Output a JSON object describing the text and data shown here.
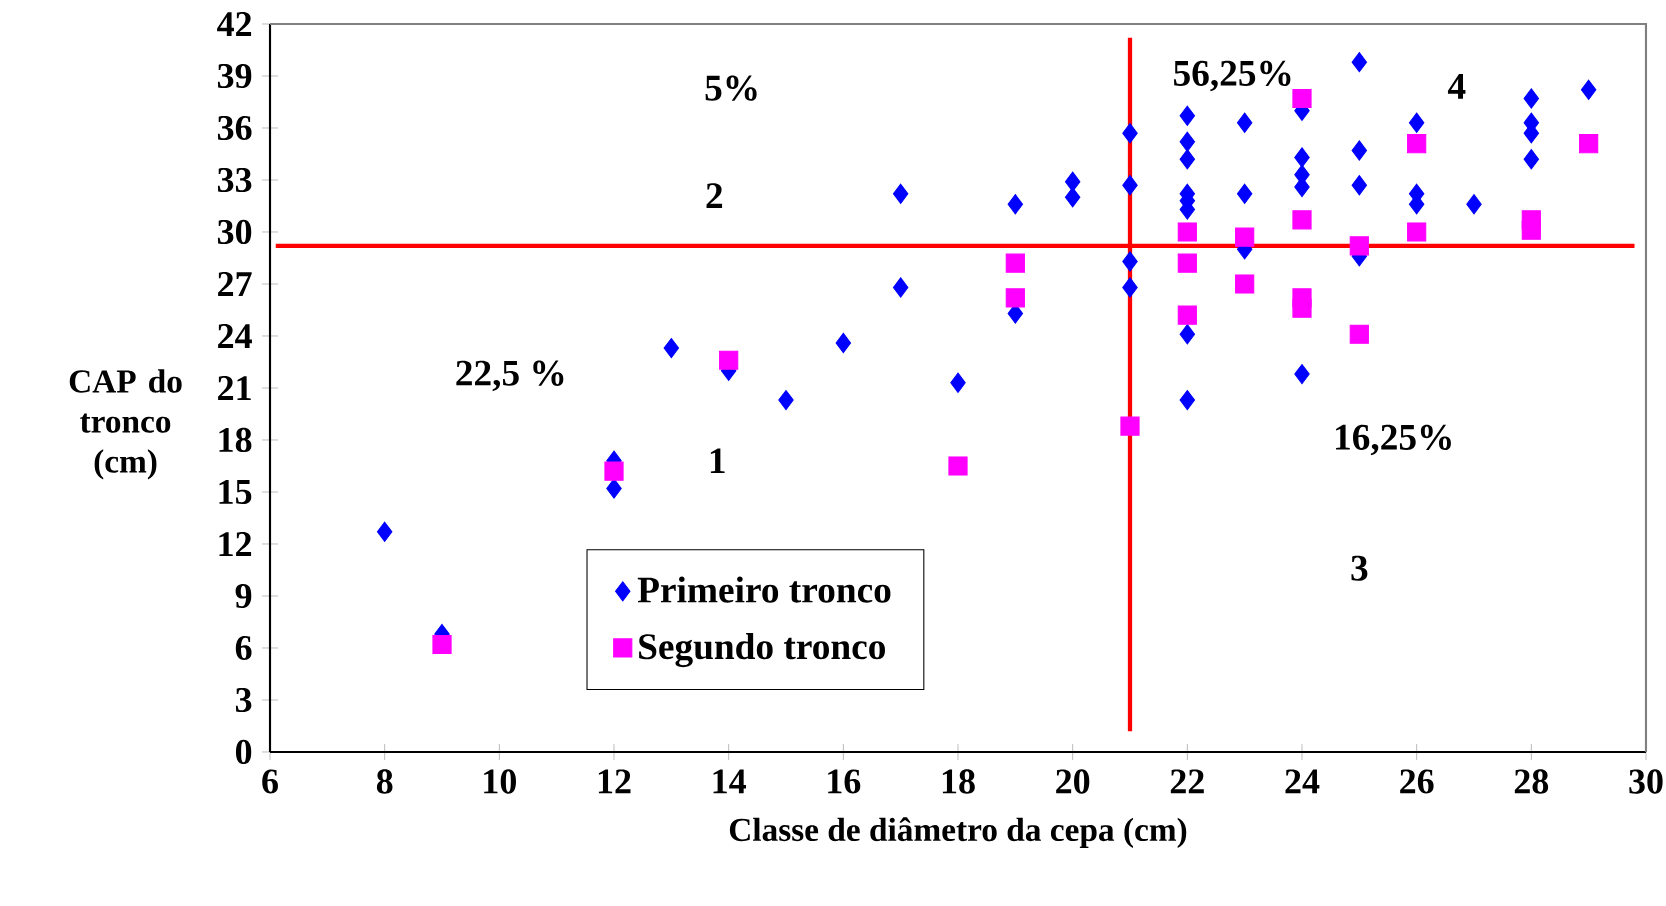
{
  "chart_data": {
    "type": "scatter",
    "xlabel": "Classe de diâmetro da cepa (cm)",
    "ylabel": "CAP do tronco (cm)",
    "xlim": [
      6,
      30
    ],
    "xticks": [
      6,
      8,
      10,
      12,
      14,
      16,
      18,
      20,
      22,
      24,
      26,
      28,
      30
    ],
    "ylim": [
      0,
      42
    ],
    "yticks": [
      0,
      3,
      6,
      9,
      12,
      15,
      18,
      21,
      24,
      27,
      30,
      33,
      36,
      39,
      42
    ],
    "grid": false,
    "legend": "bottom left",
    "series": [
      {
        "name": "Primeiro tronco",
        "color": "#0000ff",
        "marker": "diamond",
        "x": [
          8,
          9,
          12,
          12,
          13,
          14,
          15,
          16,
          17,
          17,
          18,
          19,
          19,
          20,
          20,
          21,
          21,
          21,
          21,
          22,
          22,
          22,
          22,
          22,
          22,
          22,
          22,
          23,
          23,
          23,
          24,
          24,
          24,
          24,
          24,
          25,
          25,
          25,
          25,
          26,
          26,
          26,
          27,
          28,
          28,
          28,
          28,
          29
        ],
        "values": [
          12.7,
          6.8,
          16.8,
          15.2,
          23.3,
          22.0,
          20.3,
          23.6,
          32.2,
          26.8,
          21.3,
          31.6,
          25.3,
          32.9,
          32.0,
          35.7,
          32.7,
          28.3,
          26.8,
          36.7,
          35.2,
          34.2,
          32.2,
          31.8,
          31.3,
          24.1,
          20.3,
          36.3,
          32.2,
          29.0,
          37.0,
          34.3,
          33.3,
          32.6,
          21.8,
          39.8,
          34.7,
          32.7,
          28.6,
          36.3,
          32.2,
          31.6,
          31.6,
          37.7,
          36.3,
          35.7,
          34.2,
          38.2
        ]
      },
      {
        "name": "Segundo tronco",
        "color": "#ff00ff",
        "marker": "square",
        "x": [
          9,
          12,
          14,
          18,
          19,
          19,
          21,
          22,
          22,
          22,
          23,
          23,
          24,
          24,
          24,
          24,
          25,
          25,
          26,
          26,
          28,
          28,
          29
        ],
        "values": [
          6.2,
          16.2,
          22.6,
          16.5,
          28.2,
          26.2,
          18.8,
          30.0,
          28.2,
          25.2,
          29.7,
          27.0,
          37.7,
          30.7,
          26.2,
          25.6,
          29.2,
          24.1,
          35.1,
          30.0,
          30.7,
          30.1,
          35.1
        ]
      }
    ],
    "ref_lines": [
      {
        "axis": "y",
        "value": 29.2,
        "color": "#ff0000"
      },
      {
        "axis": "x",
        "value": 21,
        "color": "#ff0000"
      }
    ],
    "annotations": [
      "5%",
      "2",
      "22,5 %",
      "1",
      "56,25%",
      "4",
      "16,25%",
      "3"
    ]
  }
}
